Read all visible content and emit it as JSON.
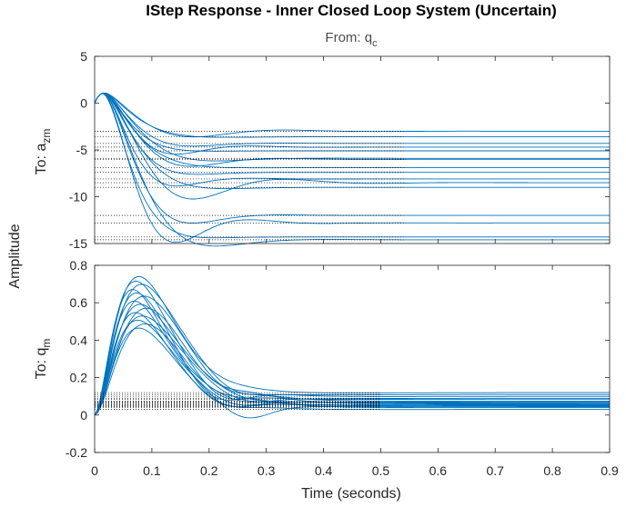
{
  "chart_data": {
    "type": "line",
    "title": "IStep Response -  Inner Closed Loop System (Uncertain)",
    "subtitle": {
      "prefix": "From: q",
      "sub": "c"
    },
    "xlabel": "Time (seconds)",
    "ylabel": "Amplitude",
    "xlim": [
      0,
      0.9
    ],
    "xticks": [
      "0",
      "0.1",
      "0.2",
      "0.3",
      "0.4",
      "0.5",
      "0.6",
      "0.7",
      "0.8",
      "0.9"
    ],
    "grid": false,
    "line_color": "#0072bd",
    "axes": [
      {
        "name": "a_zm",
        "ylabel": {
          "prefix": "To: a",
          "sub": "zm"
        },
        "ylim": [
          -15,
          5
        ],
        "yticks": [
          "-15",
          "-10",
          "-5",
          "0",
          "5"
        ],
        "peak": {
          "t": 0.02,
          "value": 1.2
        },
        "steady_state_values": [
          -3.0,
          -3.6,
          -4.3,
          -4.7,
          -5.1,
          -5.9,
          -6.0,
          -6.9,
          -7.4,
          -8.1,
          -8.5,
          -9.0,
          -12.0,
          -12.8,
          -14.3,
          -14.6
        ]
      },
      {
        "name": "q_m",
        "ylabel": {
          "prefix": "To: q",
          "sub": "m"
        },
        "ylim": [
          -0.2,
          0.8
        ],
        "yticks": [
          "-0.2",
          "0",
          "0.2",
          "0.4",
          "0.6",
          "0.8"
        ],
        "peak_values": [
          0.72,
          0.7,
          0.68,
          0.66,
          0.64,
          0.62,
          0.6,
          0.58,
          0.56,
          0.54,
          0.52,
          0.5,
          0.48,
          0.46
        ],
        "peak_times": [
          0.075,
          0.07,
          0.08,
          0.065,
          0.072,
          0.085,
          0.068,
          0.078,
          0.09,
          0.07,
          0.082,
          0.074,
          0.088,
          0.076
        ],
        "steady_state_values": [
          0.12,
          0.11,
          0.1,
          0.09,
          0.085,
          0.075,
          0.07,
          0.065,
          0.06,
          0.055,
          0.05,
          0.045,
          0.04,
          0.03
        ]
      }
    ]
  }
}
